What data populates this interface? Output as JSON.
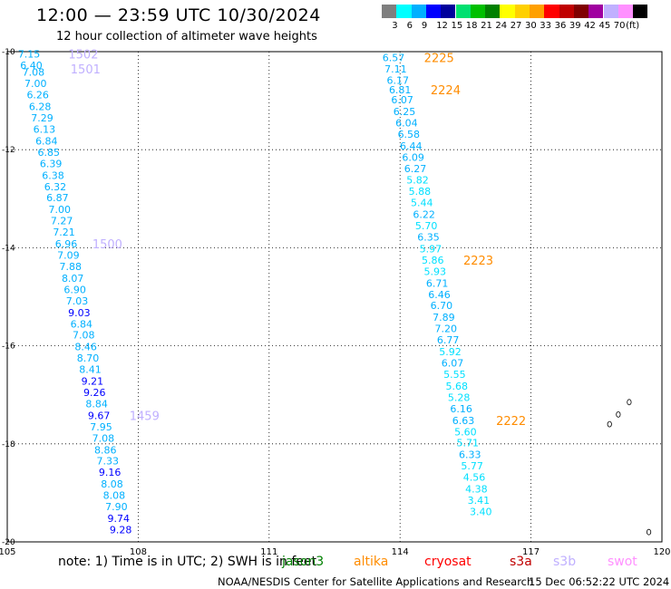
{
  "header": {
    "title": "12:00 — 23:59 UTC 10/30/2024",
    "subtitle": "12 hour collection of altimeter wave heights"
  },
  "legend": {
    "swatches": [
      "#7f7f7f",
      "#00ffff",
      "#00b0ff",
      "#0000ff",
      "#00009c",
      "#00e070",
      "#00c000",
      "#008000",
      "#ffff00",
      "#ffd000",
      "#ffa000",
      "#ff0000",
      "#c00000",
      "#800000",
      "#a000a0",
      "#c0b0ff",
      "#ff90ff",
      "#000000"
    ],
    "labels": [
      "3",
      "6",
      "9",
      "12",
      "15",
      "18",
      "21",
      "24",
      "27",
      "30",
      "33",
      "36",
      "39",
      "42",
      "45",
      "70",
      "(ft)"
    ]
  },
  "map": {
    "lon_ticks": [
      "105",
      "108",
      "111",
      "114",
      "117",
      "120"
    ],
    "lat_ticks": [
      "-10",
      "-12",
      "-14",
      "-16",
      "-18",
      "-20"
    ]
  },
  "tracks": [
    {
      "id": "west",
      "points": [
        {
          "lat": -10.05,
          "lon": 105.5,
          "v": "7.15",
          "c": "#00b0ff"
        },
        {
          "lat": -10.28,
          "lon": 105.55,
          "v": "6.40",
          "c": "#00b0ff"
        },
        {
          "lat": -10.42,
          "lon": 105.6,
          "v": "7.08",
          "c": "#00b0ff"
        },
        {
          "lat": -10.65,
          "lon": 105.65,
          "v": "7.00",
          "c": "#00b0ff"
        },
        {
          "lat": -10.88,
          "lon": 105.7,
          "v": "6.26",
          "c": "#00b0ff"
        },
        {
          "lat": -11.12,
          "lon": 105.75,
          "v": "6.28",
          "c": "#00b0ff"
        },
        {
          "lat": -11.35,
          "lon": 105.8,
          "v": "7.29",
          "c": "#00b0ff"
        },
        {
          "lat": -11.58,
          "lon": 105.85,
          "v": "6.13",
          "c": "#00b0ff"
        },
        {
          "lat": -11.82,
          "lon": 105.9,
          "v": "6.84",
          "c": "#00b0ff"
        },
        {
          "lat": -12.05,
          "lon": 105.95,
          "v": "6.85",
          "c": "#00b0ff"
        },
        {
          "lat": -12.28,
          "lon": 106.0,
          "v": "6.39",
          "c": "#00b0ff"
        },
        {
          "lat": -12.52,
          "lon": 106.05,
          "v": "6.38",
          "c": "#00b0ff"
        },
        {
          "lat": -12.75,
          "lon": 106.1,
          "v": "6.32",
          "c": "#00b0ff"
        },
        {
          "lat": -12.98,
          "lon": 106.15,
          "v": "6.87",
          "c": "#00b0ff"
        },
        {
          "lat": -13.22,
          "lon": 106.2,
          "v": "7.00",
          "c": "#00b0ff"
        },
        {
          "lat": -13.45,
          "lon": 106.25,
          "v": "7.27",
          "c": "#00b0ff"
        },
        {
          "lat": -13.68,
          "lon": 106.3,
          "v": "7.21",
          "c": "#00b0ff"
        },
        {
          "lat": -13.92,
          "lon": 106.35,
          "v": "6.96",
          "c": "#00b0ff"
        },
        {
          "lat": -14.15,
          "lon": 106.4,
          "v": "7.09",
          "c": "#00b0ff"
        },
        {
          "lat": -14.38,
          "lon": 106.45,
          "v": "7.88",
          "c": "#00b0ff"
        },
        {
          "lat": -14.62,
          "lon": 106.5,
          "v": "8.07",
          "c": "#00b0ff"
        },
        {
          "lat": -14.85,
          "lon": 106.55,
          "v": "6.90",
          "c": "#00b0ff"
        },
        {
          "lat": -15.08,
          "lon": 106.6,
          "v": "7.03",
          "c": "#00b0ff"
        },
        {
          "lat": -15.32,
          "lon": 106.65,
          "v": "9.03",
          "c": "#0000ff"
        },
        {
          "lat": -15.55,
          "lon": 106.7,
          "v": "6.84",
          "c": "#00b0ff"
        },
        {
          "lat": -15.78,
          "lon": 106.75,
          "v": "7.08",
          "c": "#00b0ff"
        },
        {
          "lat": -16.02,
          "lon": 106.8,
          "v": "8.46",
          "c": "#00b0ff"
        },
        {
          "lat": -16.25,
          "lon": 106.85,
          "v": "8.70",
          "c": "#00b0ff"
        },
        {
          "lat": -16.48,
          "lon": 106.9,
          "v": "8.41",
          "c": "#00b0ff"
        },
        {
          "lat": -16.72,
          "lon": 106.95,
          "v": "9.21",
          "c": "#0000ff"
        },
        {
          "lat": -16.95,
          "lon": 107.0,
          "v": "9.26",
          "c": "#0000ff"
        },
        {
          "lat": -17.18,
          "lon": 107.05,
          "v": "8.84",
          "c": "#00b0ff"
        },
        {
          "lat": -17.42,
          "lon": 107.1,
          "v": "9.67",
          "c": "#0000ff"
        },
        {
          "lat": -17.65,
          "lon": 107.15,
          "v": "7.95",
          "c": "#00b0ff"
        },
        {
          "lat": -17.88,
          "lon": 107.2,
          "v": "7.08",
          "c": "#00b0ff"
        },
        {
          "lat": -18.12,
          "lon": 107.25,
          "v": "8.86",
          "c": "#00b0ff"
        },
        {
          "lat": -18.35,
          "lon": 107.3,
          "v": "7.33",
          "c": "#00b0ff"
        },
        {
          "lat": -18.58,
          "lon": 107.35,
          "v": "9.16",
          "c": "#0000ff"
        },
        {
          "lat": -18.82,
          "lon": 107.4,
          "v": "8.08",
          "c": "#00b0ff"
        },
        {
          "lat": -19.05,
          "lon": 107.45,
          "v": "8.08",
          "c": "#00b0ff"
        },
        {
          "lat": -19.28,
          "lon": 107.5,
          "v": "7.90",
          "c": "#00b0ff"
        },
        {
          "lat": -19.52,
          "lon": 107.55,
          "v": "9.74",
          "c": "#0000ff"
        },
        {
          "lat": -19.75,
          "lon": 107.6,
          "v": "9.28",
          "c": "#0000ff"
        }
      ]
    },
    {
      "id": "east",
      "points": [
        {
          "lat": -10.12,
          "lon": 113.85,
          "v": "6.57",
          "c": "#00b0ff"
        },
        {
          "lat": -10.35,
          "lon": 113.9,
          "v": "7.11",
          "c": "#00b0ff"
        },
        {
          "lat": -10.58,
          "lon": 113.95,
          "v": "6.17",
          "c": "#00b0ff"
        },
        {
          "lat": -10.78,
          "lon": 114.0,
          "v": "6.81",
          "c": "#00b0ff"
        },
        {
          "lat": -10.98,
          "lon": 114.05,
          "v": "6.07",
          "c": "#00b0ff"
        },
        {
          "lat": -11.22,
          "lon": 114.1,
          "v": "6.25",
          "c": "#00b0ff"
        },
        {
          "lat": -11.45,
          "lon": 114.15,
          "v": "6.04",
          "c": "#00b0ff"
        },
        {
          "lat": -11.68,
          "lon": 114.2,
          "v": "6.58",
          "c": "#00b0ff"
        },
        {
          "lat": -11.92,
          "lon": 114.25,
          "v": "6.44",
          "c": "#00b0ff"
        },
        {
          "lat": -12.15,
          "lon": 114.3,
          "v": "6.09",
          "c": "#00b0ff"
        },
        {
          "lat": -12.38,
          "lon": 114.35,
          "v": "6.27",
          "c": "#00b0ff"
        },
        {
          "lat": -12.62,
          "lon": 114.4,
          "v": "5.82",
          "c": "#00e0ff"
        },
        {
          "lat": -12.85,
          "lon": 114.45,
          "v": "5.88",
          "c": "#00e0ff"
        },
        {
          "lat": -13.08,
          "lon": 114.5,
          "v": "5.44",
          "c": "#00e0ff"
        },
        {
          "lat": -13.32,
          "lon": 114.55,
          "v": "6.22",
          "c": "#00b0ff"
        },
        {
          "lat": -13.55,
          "lon": 114.6,
          "v": "5.70",
          "c": "#00e0ff"
        },
        {
          "lat": -13.78,
          "lon": 114.65,
          "v": "6.35",
          "c": "#00b0ff"
        },
        {
          "lat": -14.02,
          "lon": 114.7,
          "v": "5.97",
          "c": "#00e0ff"
        },
        {
          "lat": -14.25,
          "lon": 114.75,
          "v": "5.86",
          "c": "#00e0ff"
        },
        {
          "lat": -14.48,
          "lon": 114.8,
          "v": "5.93",
          "c": "#00e0ff"
        },
        {
          "lat": -14.72,
          "lon": 114.85,
          "v": "6.71",
          "c": "#00b0ff"
        },
        {
          "lat": -14.95,
          "lon": 114.9,
          "v": "6.46",
          "c": "#00b0ff"
        },
        {
          "lat": -15.18,
          "lon": 114.95,
          "v": "6.70",
          "c": "#00b0ff"
        },
        {
          "lat": -15.42,
          "lon": 115.0,
          "v": "7.89",
          "c": "#00b0ff"
        },
        {
          "lat": -15.65,
          "lon": 115.05,
          "v": "7.20",
          "c": "#00b0ff"
        },
        {
          "lat": -15.88,
          "lon": 115.1,
          "v": "6.77",
          "c": "#00b0ff"
        },
        {
          "lat": -16.12,
          "lon": 115.15,
          "v": "5.92",
          "c": "#00e0ff"
        },
        {
          "lat": -16.35,
          "lon": 115.2,
          "v": "6.07",
          "c": "#00b0ff"
        },
        {
          "lat": -16.58,
          "lon": 115.25,
          "v": "5.55",
          "c": "#00e0ff"
        },
        {
          "lat": -16.82,
          "lon": 115.3,
          "v": "5.68",
          "c": "#00e0ff"
        },
        {
          "lat": -17.05,
          "lon": 115.35,
          "v": "5.28",
          "c": "#00e0ff"
        },
        {
          "lat": -17.28,
          "lon": 115.4,
          "v": "6.16",
          "c": "#00b0ff"
        },
        {
          "lat": -17.52,
          "lon": 115.45,
          "v": "6.63",
          "c": "#00b0ff"
        },
        {
          "lat": -17.75,
          "lon": 115.5,
          "v": "5.60",
          "c": "#00e0ff"
        },
        {
          "lat": -17.98,
          "lon": 115.55,
          "v": "5.71",
          "c": "#00e0ff"
        },
        {
          "lat": -18.22,
          "lon": 115.6,
          "v": "6.33",
          "c": "#00b0ff"
        },
        {
          "lat": -18.45,
          "lon": 115.65,
          "v": "5.77",
          "c": "#00e0ff"
        },
        {
          "lat": -18.68,
          "lon": 115.7,
          "v": "4.56",
          "c": "#00e0ff"
        },
        {
          "lat": -18.92,
          "lon": 115.75,
          "v": "4.38",
          "c": "#00e0ff"
        },
        {
          "lat": -19.15,
          "lon": 115.8,
          "v": "3.41",
          "c": "#00e0ff"
        },
        {
          "lat": -19.38,
          "lon": 115.85,
          "v": "3.40",
          "c": "#00e0ff"
        }
      ]
    }
  ],
  "time_labels": [
    {
      "lat": -10.05,
      "lon": 106.4,
      "v": "1502",
      "c": "#c0b0ff"
    },
    {
      "lat": -10.35,
      "lon": 106.45,
      "v": "1501",
      "c": "#c0b0ff"
    },
    {
      "lat": -13.92,
      "lon": 106.95,
      "v": "1500",
      "c": "#c0b0ff"
    },
    {
      "lat": -17.42,
      "lon": 107.8,
      "v": "1459",
      "c": "#c0b0ff"
    },
    {
      "lat": -10.12,
      "lon": 114.55,
      "v": "2225",
      "c": "#ff8c00"
    },
    {
      "lat": -10.78,
      "lon": 114.7,
      "v": "2224",
      "c": "#ff8c00"
    },
    {
      "lat": -14.25,
      "lon": 115.45,
      "v": "2223",
      "c": "#ff8c00"
    },
    {
      "lat": -17.52,
      "lon": 116.2,
      "v": "2222",
      "c": "#ff8c00"
    }
  ],
  "islands": [
    {
      "lat": -17.15,
      "lon": 119.25
    },
    {
      "lat": -17.4,
      "lon": 119.0
    },
    {
      "lat": -17.6,
      "lon": 118.8
    },
    {
      "lat": -19.8,
      "lon": 119.7
    }
  ],
  "note": {
    "prefix": "note:  1) Time is in UTC; 2) SWH is in feet",
    "satellites": [
      {
        "name": "jason3",
        "color": "#008000"
      },
      {
        "name": "altika",
        "color": "#ff8c00"
      },
      {
        "name": "cryosat",
        "color": "#ff0000"
      },
      {
        "name": "s3a",
        "color": "#c00000"
      },
      {
        "name": "s3b",
        "color": "#c0b0ff"
      },
      {
        "name": "swot",
        "color": "#ff90ff"
      }
    ]
  },
  "footer": {
    "credit": "NOAA/NESDIS Center for Satellite Applications and Research",
    "generated": "15 Dec 06:52:22 UTC 2024"
  }
}
